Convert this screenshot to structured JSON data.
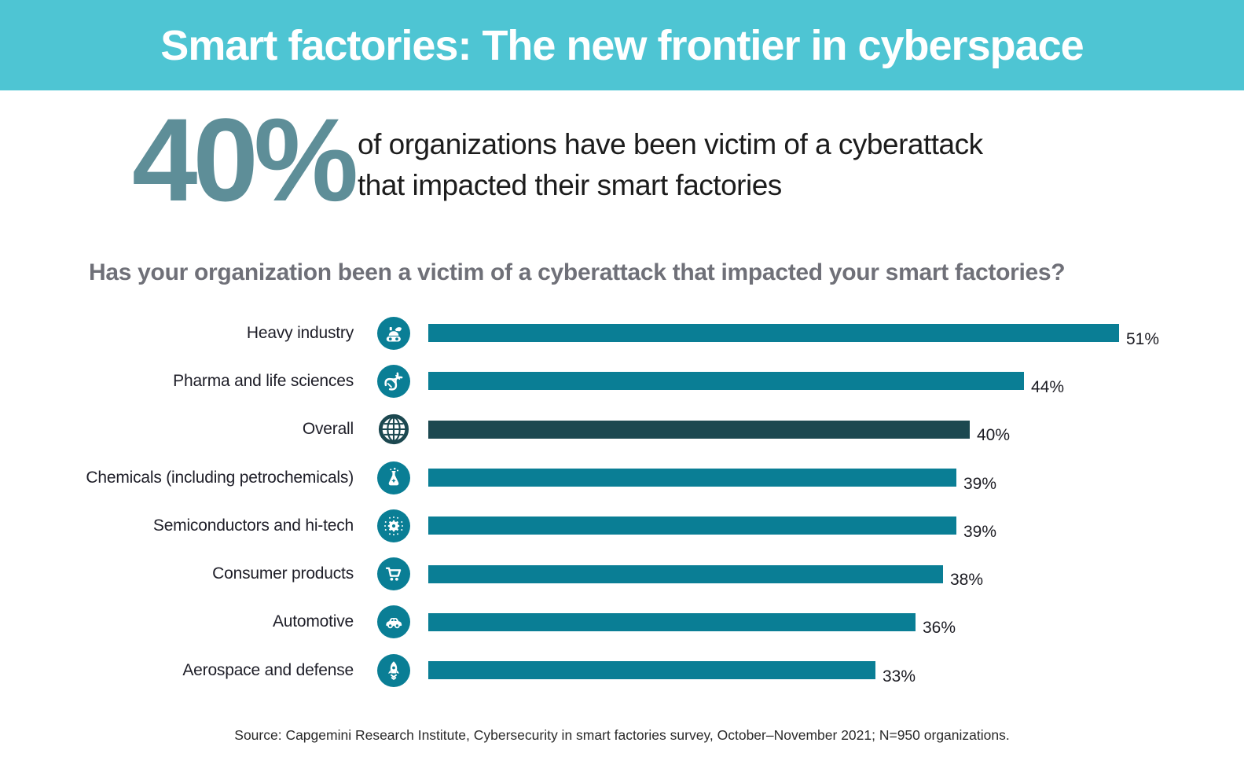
{
  "header": {
    "title": "Smart factories: The new frontier in cyberspace",
    "bg_color": "#4ec5d3"
  },
  "stat": {
    "value": "40%",
    "line1": "of organizations have been victim of a cyberattack",
    "line2": "that impacted their smart factories",
    "value_color": "#5e8e98"
  },
  "chart_data": {
    "type": "bar",
    "orientation": "horizontal",
    "title": "Has your organization been a victim of a cyberattack that impacted your smart factories?",
    "categories": [
      "Heavy industry",
      "Pharma and life sciences",
      "Overall",
      "Chemicals (including petrochemicals)",
      "Semiconductors and hi-tech",
      "Consumer products",
      "Automotive",
      "Aerospace and defense"
    ],
    "values": [
      51,
      44,
      40,
      39,
      39,
      38,
      36,
      33
    ],
    "labels": [
      "51%",
      "44%",
      "40%",
      "39%",
      "39%",
      "38%",
      "36%",
      "33%"
    ],
    "icons": [
      "excavator-icon",
      "dna-icon",
      "globe-icon",
      "flask-icon",
      "chip-icon",
      "shopping-cart-icon",
      "car-icon",
      "rocket-icon"
    ],
    "highlight_index": 2,
    "colors": {
      "bar": "#0a7e95",
      "highlight": "#1c4850"
    },
    "xlim": [
      0,
      51
    ],
    "grid": false,
    "legend": false
  },
  "source": {
    "text": "Source: Capgemini Research Institute, Cybersecurity in smart factories survey, October–November 2021; N=950 organizations."
  }
}
